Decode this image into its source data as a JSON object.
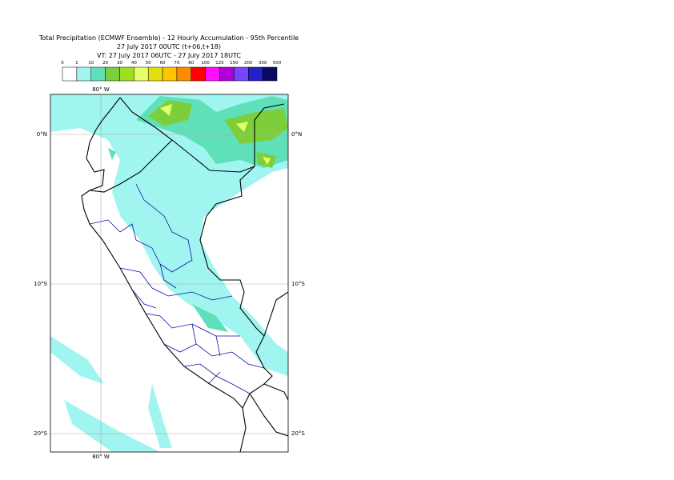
{
  "header": {
    "title": "Total Precipitation (ECMWF Ensemble) - 12 Hourly Accumulation - 95th Percentile",
    "line2": "27 July 2017 00UTC (t+06,t+18)",
    "line3": "VT: 27 July 2017 06UTC - 27 July 2017 18UTC"
  },
  "legend": {
    "labels": [
      "0",
      "1",
      "10",
      "20",
      "30",
      "40",
      "50",
      "60",
      "70",
      "80",
      "100",
      "125",
      "150",
      "200",
      "300",
      "500"
    ],
    "colors": [
      "#ffffff",
      "#a0f5f0",
      "#5fe0b8",
      "#7ccf3a",
      "#9ee020",
      "#e4ff6a",
      "#e0e010",
      "#ffc400",
      "#ff8a00",
      "#ff0000",
      "#ff10ff",
      "#b000d8",
      "#7a44ff",
      "#2420c8",
      "#0a0a60"
    ]
  },
  "map": {
    "lon_label_top": "80° W",
    "lon_label_bottom": "80° W",
    "lat_labels_left": [
      "0°N",
      "10°S",
      "20°S"
    ],
    "lat_labels_right": [
      "0°N",
      "10°S",
      "20°S"
    ]
  }
}
